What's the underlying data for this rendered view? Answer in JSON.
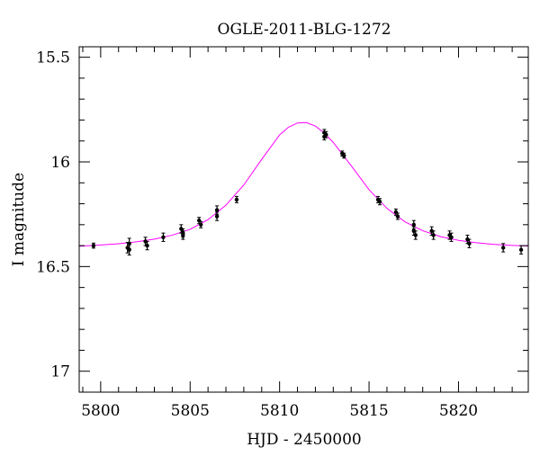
{
  "chart_data": {
    "type": "scatter",
    "title": "OGLE-2011-BLG-1272",
    "xlabel": "HJD - 2450000",
    "ylabel": "I magnitude",
    "xlim": [
      5798.8,
      5823.9
    ],
    "ylim": [
      17.1,
      15.45
    ],
    "y_inverted": true,
    "grid": false,
    "xticks": [
      {
        "value": 5800,
        "label": "5800"
      },
      {
        "value": 5805,
        "label": "5805"
      },
      {
        "value": 5810,
        "label": "5810"
      },
      {
        "value": 5815,
        "label": "5815"
      },
      {
        "value": 5820,
        "label": "5820"
      }
    ],
    "yticks": [
      {
        "value": 15.5,
        "label": "15.5"
      },
      {
        "value": 16,
        "label": "16"
      },
      {
        "value": 16.5,
        "label": "16.5"
      },
      {
        "value": 17,
        "label": "17"
      }
    ],
    "x_minor_step": 1,
    "y_minor_step": 0.1,
    "series": [
      {
        "type": "scatter",
        "color": "#000000",
        "points": [
          {
            "x": 5799.6,
            "y": 16.4,
            "err": 0.012
          },
          {
            "x": 5801.5,
            "y": 16.41,
            "err": 0.025
          },
          {
            "x": 5801.6,
            "y": 16.39,
            "err": 0.025
          },
          {
            "x": 5801.6,
            "y": 16.42,
            "err": 0.025
          },
          {
            "x": 5802.5,
            "y": 16.38,
            "err": 0.02
          },
          {
            "x": 5802.6,
            "y": 16.4,
            "err": 0.02
          },
          {
            "x": 5803.5,
            "y": 16.36,
            "err": 0.02
          },
          {
            "x": 5804.5,
            "y": 16.32,
            "err": 0.02
          },
          {
            "x": 5804.6,
            "y": 16.34,
            "err": 0.02
          },
          {
            "x": 5804.6,
            "y": 16.35,
            "err": 0.02
          },
          {
            "x": 5805.5,
            "y": 16.28,
            "err": 0.015
          },
          {
            "x": 5805.6,
            "y": 16.3,
            "err": 0.015
          },
          {
            "x": 5806.5,
            "y": 16.23,
            "err": 0.02
          },
          {
            "x": 5806.5,
            "y": 16.26,
            "err": 0.02
          },
          {
            "x": 5807.6,
            "y": 16.18,
            "err": 0.015
          },
          {
            "x": 5812.5,
            "y": 15.86,
            "err": 0.015
          },
          {
            "x": 5812.5,
            "y": 15.88,
            "err": 0.015
          },
          {
            "x": 5812.6,
            "y": 15.87,
            "err": 0.015
          },
          {
            "x": 5813.5,
            "y": 15.96,
            "err": 0.012
          },
          {
            "x": 5813.6,
            "y": 15.97,
            "err": 0.012
          },
          {
            "x": 5815.5,
            "y": 16.18,
            "err": 0.015
          },
          {
            "x": 5815.6,
            "y": 16.19,
            "err": 0.015
          },
          {
            "x": 5816.5,
            "y": 16.24,
            "err": 0.015
          },
          {
            "x": 5816.6,
            "y": 16.26,
            "err": 0.015
          },
          {
            "x": 5817.5,
            "y": 16.3,
            "err": 0.02
          },
          {
            "x": 5817.5,
            "y": 16.33,
            "err": 0.02
          },
          {
            "x": 5817.6,
            "y": 16.35,
            "err": 0.02
          },
          {
            "x": 5818.5,
            "y": 16.33,
            "err": 0.02
          },
          {
            "x": 5818.6,
            "y": 16.35,
            "err": 0.02
          },
          {
            "x": 5819.5,
            "y": 16.35,
            "err": 0.02
          },
          {
            "x": 5819.6,
            "y": 16.36,
            "err": 0.02
          },
          {
            "x": 5820.5,
            "y": 16.37,
            "err": 0.02
          },
          {
            "x": 5820.6,
            "y": 16.39,
            "err": 0.02
          },
          {
            "x": 5822.5,
            "y": 16.41,
            "err": 0.02
          },
          {
            "x": 5823.5,
            "y": 16.42,
            "err": 0.02
          }
        ]
      },
      {
        "type": "line",
        "color": "#ff00ff",
        "points": [
          {
            "x": 5798.8,
            "y": 16.403
          },
          {
            "x": 5800.0,
            "y": 16.397
          },
          {
            "x": 5801.0,
            "y": 16.391
          },
          {
            "x": 5802.0,
            "y": 16.382
          },
          {
            "x": 5803.0,
            "y": 16.369
          },
          {
            "x": 5804.0,
            "y": 16.35
          },
          {
            "x": 5805.0,
            "y": 16.322
          },
          {
            "x": 5806.0,
            "y": 16.276
          },
          {
            "x": 5807.0,
            "y": 16.207
          },
          {
            "x": 5808.0,
            "y": 16.11
          },
          {
            "x": 5809.0,
            "y": 15.988
          },
          {
            "x": 5810.0,
            "y": 15.871
          },
          {
            "x": 5810.5,
            "y": 15.834
          },
          {
            "x": 5811.0,
            "y": 15.814
          },
          {
            "x": 5811.5,
            "y": 15.812
          },
          {
            "x": 5812.0,
            "y": 15.829
          },
          {
            "x": 5812.5,
            "y": 15.862
          },
          {
            "x": 5813.0,
            "y": 15.907
          },
          {
            "x": 5814.0,
            "y": 16.018
          },
          {
            "x": 5815.0,
            "y": 16.133
          },
          {
            "x": 5816.0,
            "y": 16.222
          },
          {
            "x": 5817.0,
            "y": 16.286
          },
          {
            "x": 5818.0,
            "y": 16.329
          },
          {
            "x": 5819.0,
            "y": 16.357
          },
          {
            "x": 5820.0,
            "y": 16.375
          },
          {
            "x": 5821.0,
            "y": 16.386
          },
          {
            "x": 5822.0,
            "y": 16.394
          },
          {
            "x": 5823.0,
            "y": 16.399
          },
          {
            "x": 5823.9,
            "y": 16.402
          }
        ]
      }
    ]
  }
}
